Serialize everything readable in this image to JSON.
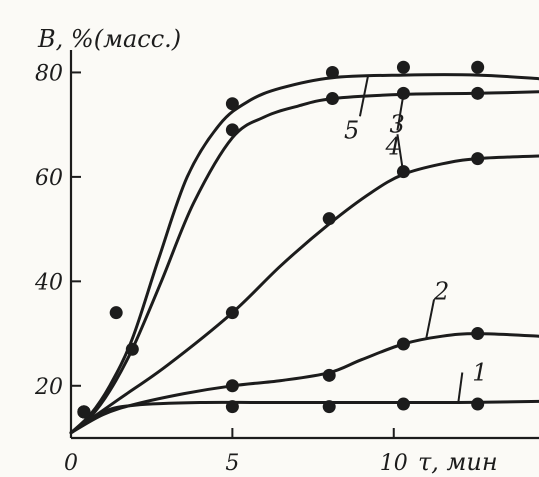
{
  "chart_data": {
    "type": "line",
    "title": "",
    "ylabel": "B, %(масс.)",
    "xlabel": "τ, мин",
    "xlim": [
      0,
      14.5
    ],
    "ylim": [
      10,
      82
    ],
    "x_ticks": [
      0,
      5,
      10
    ],
    "y_ticks": [
      20,
      40,
      60,
      80
    ],
    "grid": false,
    "legend": "none",
    "ink_color": "#1c1c1c",
    "series": [
      {
        "name": "1",
        "label": "1",
        "points": [
          [
            0.4,
            15
          ],
          [
            5,
            16
          ],
          [
            8,
            16
          ],
          [
            10.3,
            16.5
          ],
          [
            12.6,
            16.5
          ]
        ],
        "curve": [
          [
            0,
            11
          ],
          [
            1,
            15
          ],
          [
            2,
            16.3
          ],
          [
            4,
            16.8
          ],
          [
            6,
            16.8
          ],
          [
            9,
            16.8
          ],
          [
            12,
            16.8
          ],
          [
            14.5,
            17
          ]
        ]
      },
      {
        "name": "2",
        "label": "2",
        "points": [
          [
            0.4,
            15
          ],
          [
            5,
            20
          ],
          [
            8,
            22
          ],
          [
            10.3,
            28
          ],
          [
            12.6,
            30
          ]
        ],
        "curve": [
          [
            0,
            11
          ],
          [
            1,
            14.5
          ],
          [
            2,
            16.5
          ],
          [
            3.5,
            18.5
          ],
          [
            5,
            20
          ],
          [
            6.5,
            21
          ],
          [
            8,
            22.5
          ],
          [
            9,
            25
          ],
          [
            10.3,
            28
          ],
          [
            11.5,
            29.5
          ],
          [
            12.6,
            30
          ],
          [
            14.5,
            29.5
          ]
        ]
      },
      {
        "name": "3",
        "label": "3",
        "points": [
          [
            0.4,
            15
          ],
          [
            5,
            34
          ],
          [
            8,
            52
          ],
          [
            10.3,
            61
          ],
          [
            12.6,
            63.5
          ]
        ],
        "curve": [
          [
            0,
            11
          ],
          [
            1.5,
            17.5
          ],
          [
            3,
            24
          ],
          [
            5,
            34
          ],
          [
            6.5,
            43
          ],
          [
            8,
            51
          ],
          [
            9.3,
            57
          ],
          [
            10.3,
            60.5
          ],
          [
            11.5,
            62.5
          ],
          [
            12.6,
            63.5
          ],
          [
            14.5,
            64
          ]
        ]
      },
      {
        "name": "4",
        "label": "4",
        "points": [
          [
            0.4,
            15
          ],
          [
            1.9,
            27
          ],
          [
            5,
            69
          ],
          [
            8.1,
            75
          ],
          [
            10.3,
            76
          ],
          [
            12.6,
            76
          ]
        ],
        "curve": [
          [
            0,
            11
          ],
          [
            0.6,
            14
          ],
          [
            1.2,
            19
          ],
          [
            1.9,
            27
          ],
          [
            2.8,
            40
          ],
          [
            3.8,
            55
          ],
          [
            5,
            67.5
          ],
          [
            6,
            71.5
          ],
          [
            7,
            73.5
          ],
          [
            8.1,
            75
          ],
          [
            10.3,
            75.8
          ],
          [
            12.6,
            76
          ],
          [
            14.5,
            76.3
          ]
        ]
      },
      {
        "name": "5",
        "label": "5",
        "points": [
          [
            1.4,
            34
          ],
          [
            5,
            74
          ],
          [
            8.1,
            80
          ],
          [
            10.3,
            81
          ],
          [
            12.6,
            81
          ]
        ],
        "curve": [
          [
            0,
            11
          ],
          [
            0.6,
            14.5
          ],
          [
            1.2,
            20
          ],
          [
            1.9,
            29
          ],
          [
            2.7,
            44
          ],
          [
            3.6,
            60
          ],
          [
            4.6,
            70
          ],
          [
            5.5,
            74.5
          ],
          [
            6.5,
            77
          ],
          [
            8.1,
            79
          ],
          [
            10.3,
            79.5
          ],
          [
            12.6,
            79.5
          ],
          [
            14.5,
            78.8
          ]
        ]
      }
    ]
  }
}
